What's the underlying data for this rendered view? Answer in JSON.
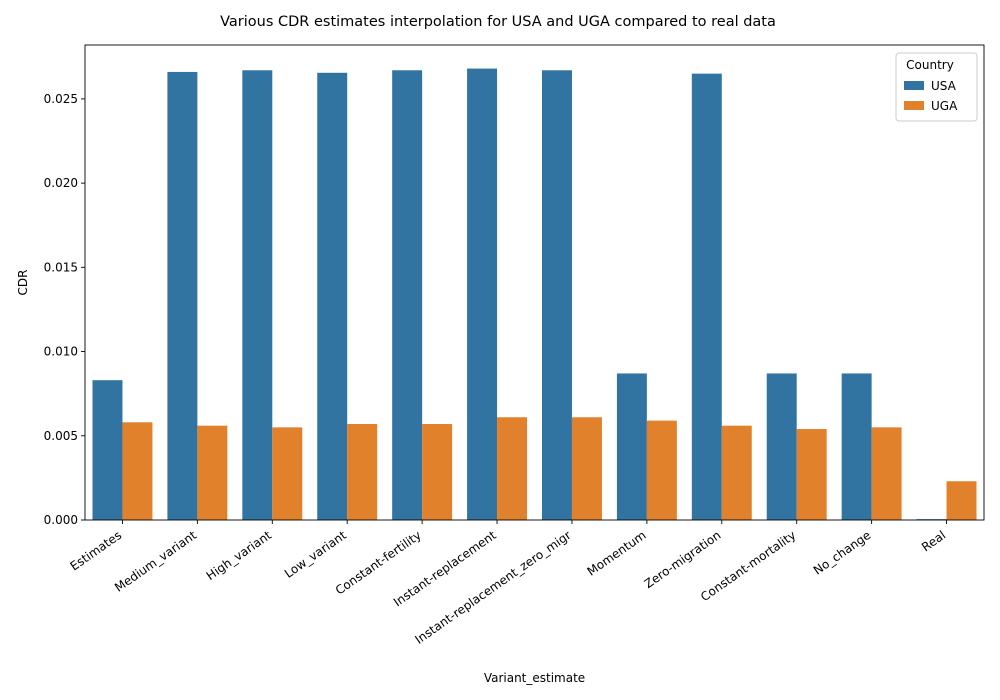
{
  "chart_data": {
    "type": "bar",
    "title": "Various CDR estimates interpolation for USA and UGA compared to real data",
    "xlabel": "Variant_estimate",
    "ylabel": "CDR",
    "categories": [
      "Estimates",
      "Medium_variant",
      "High_variant",
      "Low_variant",
      "Constant-fertility",
      "Instant-replacement",
      "Instant-replacement_zero_migr",
      "Momentum",
      "Zero-migration",
      "Constant-mortality",
      "No_change",
      "Real"
    ],
    "series": [
      {
        "name": "USA",
        "color": "#3274a1",
        "values": [
          0.0083,
          0.0266,
          0.0267,
          0.02655,
          0.0267,
          0.0268,
          0.0267,
          0.0087,
          0.0265,
          0.0087,
          0.0087,
          5e-05
        ]
      },
      {
        "name": "UGA",
        "color": "#e1812c",
        "values": [
          0.0058,
          0.0056,
          0.0055,
          0.0057,
          0.0057,
          0.0061,
          0.0061,
          0.0059,
          0.0056,
          0.0054,
          0.0055,
          0.0023
        ]
      }
    ],
    "ylim": [
      0,
      0.0282
    ],
    "yticks": [
      "0.000",
      "0.005",
      "0.010",
      "0.015",
      "0.020",
      "0.025"
    ],
    "legend": {
      "title": "Country",
      "placement": "top-right"
    },
    "grid": false
  }
}
